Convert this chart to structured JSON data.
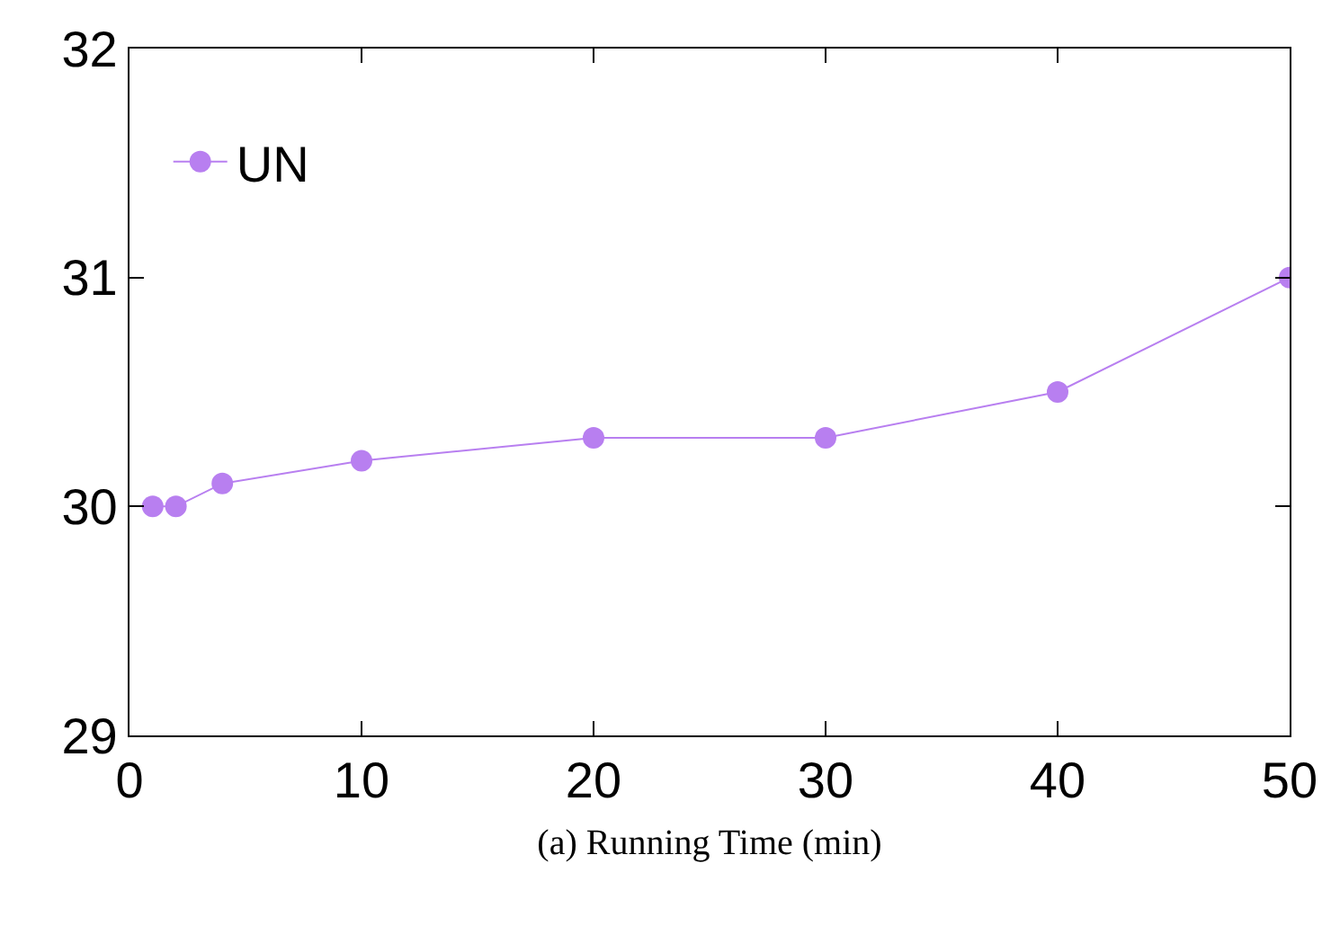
{
  "chart_data": {
    "type": "line",
    "xlabel": "(a) Running Time (min)",
    "x": [
      1,
      2,
      4,
      10,
      20,
      30,
      40,
      50
    ],
    "series": [
      {
        "name": "UN",
        "color": "#b87ff0",
        "values": [
          30,
          30,
          30.1,
          30.2,
          30.3,
          30.3,
          30.5,
          31
        ]
      }
    ],
    "xlim": [
      0,
      50
    ],
    "xticks": [
      0,
      10,
      20,
      30,
      40,
      50
    ],
    "ylim": [
      29,
      32
    ],
    "yticks": [
      29,
      30,
      31,
      32
    ],
    "grid": false,
    "legend": "top left",
    "marker": "circle",
    "line_style": "solid"
  }
}
